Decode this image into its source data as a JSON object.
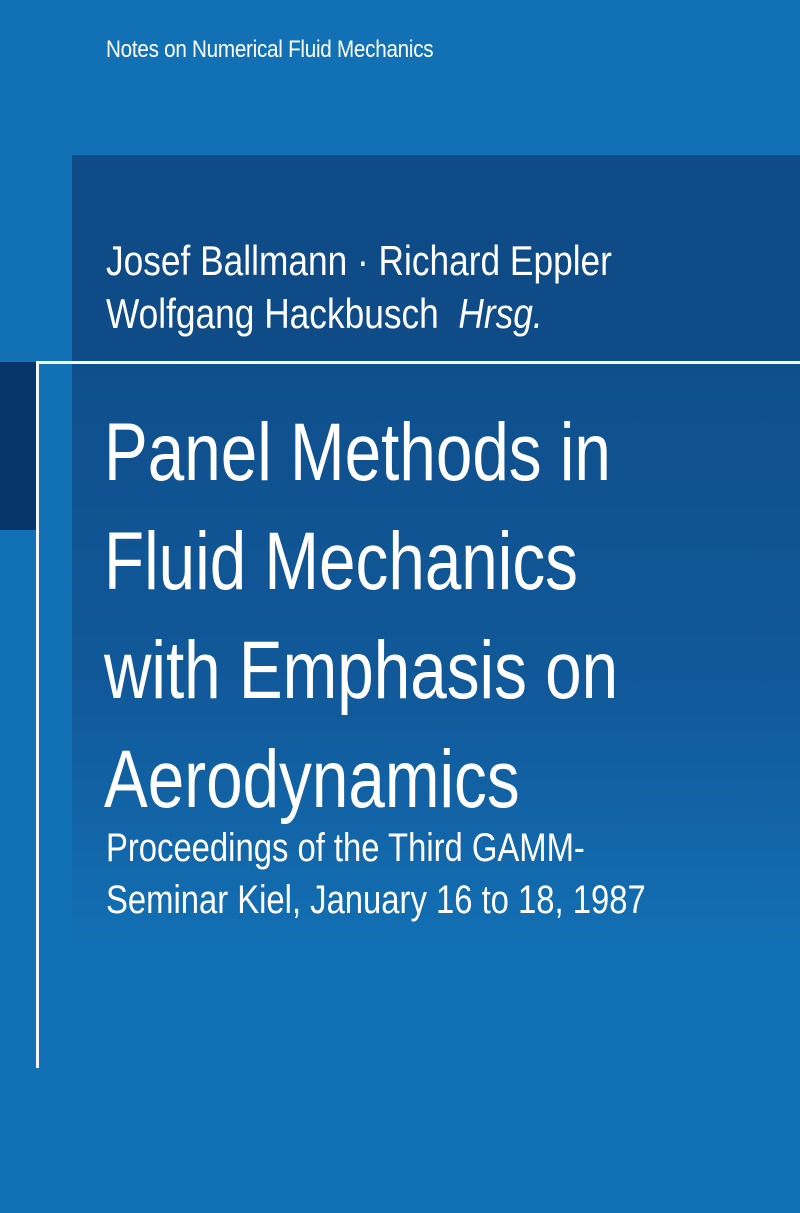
{
  "series": "Notes on Numerical Fluid Mechanics",
  "authors": {
    "line1": "Josef Ballmann · Richard Eppler",
    "line2": "Wolfgang Hackbusch",
    "role": "Hrsg."
  },
  "title": {
    "lines": [
      "Panel Methods in",
      "Fluid Mechanics",
      "with Emphasis on",
      "Aerodynamics"
    ]
  },
  "subtitle": {
    "lines": [
      "Proceedings of the Third GAMM-",
      "Seminar Kiel, January 16 to 18, 1987"
    ]
  },
  "colors": {
    "background": "#1271b5",
    "header_panel": "#0f4b86",
    "left_block": "#07366a",
    "text": "#ffffff"
  }
}
